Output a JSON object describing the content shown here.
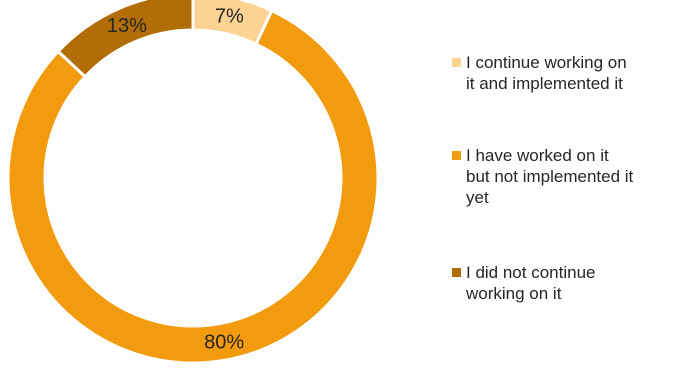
{
  "chart_data": {
    "type": "pie",
    "variant": "doughnut",
    "legend_position": "right",
    "title": "",
    "series": [
      {
        "values": [
          7,
          80,
          13
        ],
        "data_labels": [
          "7%",
          "80%",
          "13%"
        ]
      }
    ],
    "categories": [
      "I continue working on it and implemented it",
      "I have worked on it but not implemented it yet",
      "I did not continue working on it"
    ],
    "legend_lines": [
      [
        "I continue working on",
        "it and implemented it"
      ],
      [
        "I have worked on it",
        "but not implemented it",
        "yet"
      ],
      [
        "I did not continue",
        "working on it"
      ]
    ],
    "colors": [
      "#FCD393",
      "#F29B0F",
      "#B26D07"
    ]
  }
}
